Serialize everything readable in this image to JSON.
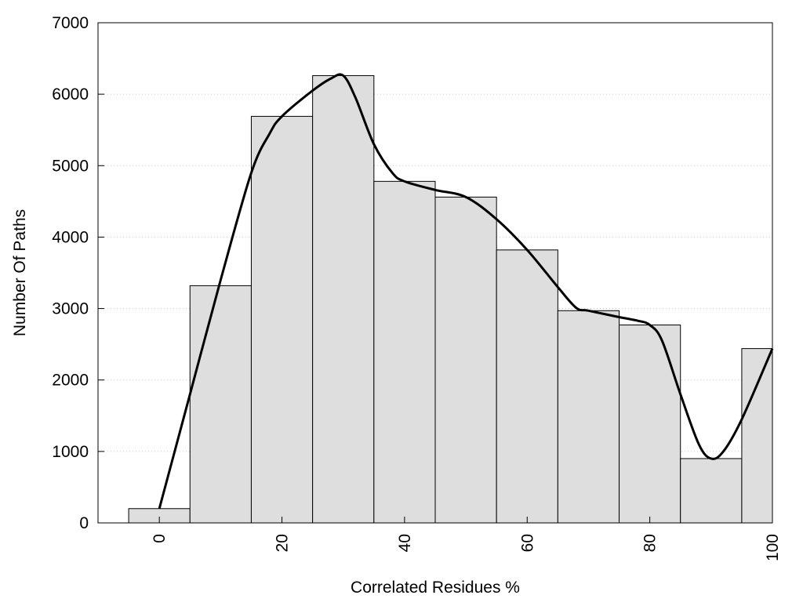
{
  "chart_data": {
    "type": "bar",
    "title": "",
    "xlabel": "Correlated Residues %",
    "ylabel": "Number Of Paths",
    "xlim": [
      -10,
      100
    ],
    "ylim": [
      0,
      7000
    ],
    "x_ticks": [
      0,
      20,
      40,
      60,
      80,
      100
    ],
    "y_ticks": [
      0,
      1000,
      2000,
      3000,
      4000,
      5000,
      6000,
      7000
    ],
    "grid": "horizontal dotted",
    "bar_color": "#dedede",
    "bar_width": 10,
    "bars": [
      {
        "x": 0,
        "value": 200
      },
      {
        "x": 10,
        "value": 3320
      },
      {
        "x": 20,
        "value": 5690
      },
      {
        "x": 30,
        "value": 6260
      },
      {
        "x": 40,
        "value": 4780
      },
      {
        "x": 50,
        "value": 4560
      },
      {
        "x": 60,
        "value": 3820
      },
      {
        "x": 70,
        "value": 2970
      },
      {
        "x": 80,
        "value": 2770
      },
      {
        "x": 90,
        "value": 900
      },
      {
        "x": 100,
        "value": 2440
      }
    ],
    "smooth_curve": {
      "x": [
        0,
        5,
        10,
        15,
        18,
        20,
        25,
        28,
        30,
        32,
        35,
        38,
        40,
        45,
        50,
        55,
        60,
        65,
        68,
        70,
        75,
        78,
        80,
        82,
        85,
        88,
        90,
        92,
        95,
        100
      ],
      "y": [
        200,
        1800,
        3400,
        4900,
        5450,
        5690,
        6050,
        6220,
        6260,
        5950,
        5300,
        4900,
        4780,
        4660,
        4560,
        4250,
        3820,
        3300,
        3010,
        2970,
        2880,
        2830,
        2770,
        2550,
        1800,
        1100,
        900,
        1000,
        1450,
        2440
      ],
      "color": "#000000"
    }
  }
}
